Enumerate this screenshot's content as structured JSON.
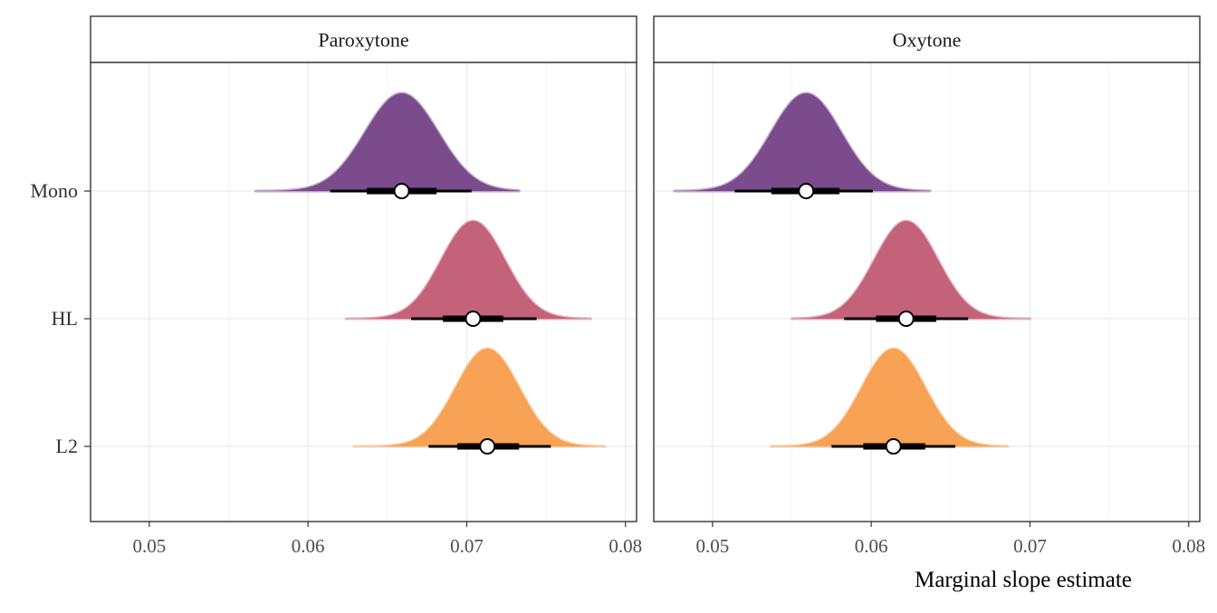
{
  "chart_data": {
    "type": "halfeye",
    "xlabel": "Marginal slope estimate",
    "ylabel": "",
    "xlim": [
      0.0463,
      0.0807
    ],
    "x_ticks": [
      0.05,
      0.06,
      0.07,
      0.08
    ],
    "x_tick_labels": [
      "0.05",
      "0.06",
      "0.07",
      "0.08"
    ],
    "categories": [
      "Mono",
      "HL",
      "L2"
    ],
    "grid": true,
    "legend": "none",
    "colors": {
      "Mono": "#7b4b8c",
      "HL": "#c4627a",
      "L2": "#f7a254"
    },
    "panels": [
      {
        "title": "Paroxytone",
        "series": [
          {
            "name": "Mono",
            "median": 0.0659,
            "interval_66": [
              0.0637,
              0.0681
            ],
            "interval_95": [
              0.0614,
              0.0703
            ],
            "sd": 0.0023,
            "density_range": [
              0.0567,
              0.0733
            ]
          },
          {
            "name": "HL",
            "median": 0.0704,
            "interval_66": [
              0.0685,
              0.0723
            ],
            "interval_95": [
              0.0665,
              0.0744
            ],
            "sd": 0.002,
            "density_range": [
              0.0624,
              0.0778
            ]
          },
          {
            "name": "L2",
            "median": 0.0713,
            "interval_66": [
              0.0694,
              0.0733
            ],
            "interval_95": [
              0.0676,
              0.0753
            ],
            "sd": 0.002,
            "density_range": [
              0.0629,
              0.0787
            ]
          }
        ]
      },
      {
        "title": "Oxytone",
        "series": [
          {
            "name": "Mono",
            "median": 0.0559,
            "interval_66": [
              0.0537,
              0.058
            ],
            "interval_95": [
              0.0514,
              0.0601
            ],
            "sd": 0.0022,
            "density_range": [
              0.0476,
              0.0637
            ]
          },
          {
            "name": "HL",
            "median": 0.0622,
            "interval_66": [
              0.0603,
              0.0641
            ],
            "interval_95": [
              0.0583,
              0.0661
            ],
            "sd": 0.002,
            "density_range": [
              0.055,
              0.07
            ]
          },
          {
            "name": "L2",
            "median": 0.0614,
            "interval_66": [
              0.0595,
              0.0634
            ],
            "interval_95": [
              0.0575,
              0.0653
            ],
            "sd": 0.002,
            "density_range": [
              0.0537,
              0.0686
            ]
          }
        ]
      }
    ]
  }
}
